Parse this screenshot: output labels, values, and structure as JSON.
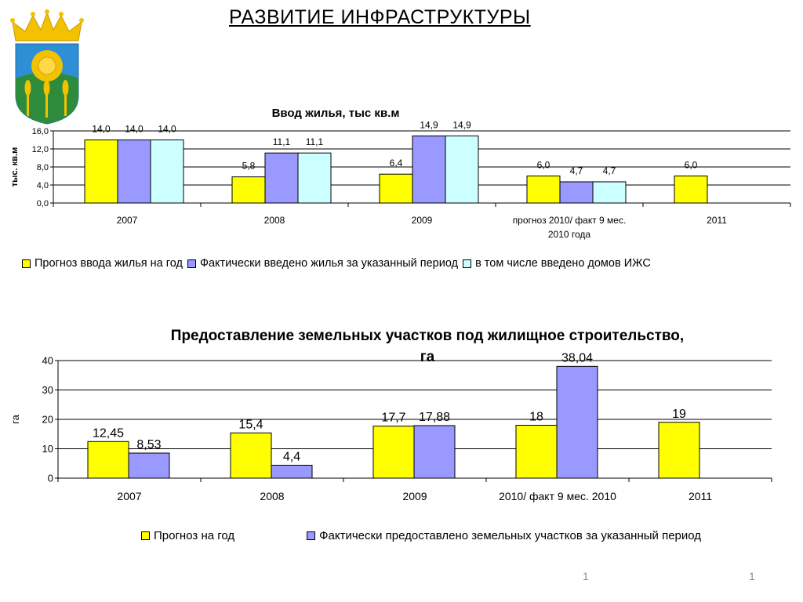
{
  "page": {
    "title": "РАЗВИТИЕ ИНФРАСТРУКТУРЫ",
    "page_numbers": [
      "1",
      "1"
    ]
  },
  "colors": {
    "yellow": "#ffff00",
    "lavender": "#9999ff",
    "cyan": "#ccffff",
    "crest_blue": "#2f8fd6",
    "crest_green": "#2e8b3c",
    "crest_gold": "#f2c200"
  },
  "chart_data": [
    {
      "type": "bar",
      "title": "Ввод жилья, тыс кв.м",
      "ylabel": "тыс. кв.м",
      "xlabel": "",
      "ylim": [
        0,
        16
      ],
      "yticks": [
        "0,0",
        "4,0",
        "8,0",
        "12,0",
        "16,0"
      ],
      "grid": true,
      "legend_position": "bottom",
      "categories": [
        "2007",
        "2008",
        "2009",
        "прогноз 2010/ факт 9 мес. 2010 года",
        "2011"
      ],
      "series": [
        {
          "name": "Прогноз ввода жилья на год",
          "color": "#ffff00",
          "values": [
            14.0,
            5.8,
            6.4,
            6.0,
            6.0
          ],
          "labels": [
            "14,0",
            "5,8",
            "6,4",
            "6,0",
            "6,0"
          ]
        },
        {
          "name": "Фактически введено жилья за указанный период",
          "color": "#9999ff",
          "values": [
            14.0,
            11.1,
            14.9,
            4.7,
            null
          ],
          "labels": [
            "14,0",
            "11,1",
            "14,9",
            "4,7",
            null
          ]
        },
        {
          "name": "в том числе введено домов ИЖС",
          "color": "#ccffff",
          "values": [
            14.0,
            11.1,
            14.9,
            4.7,
            null
          ],
          "labels": [
            "14,0",
            "11,1",
            "14,9",
            "4,7",
            null
          ]
        }
      ]
    },
    {
      "type": "bar",
      "title": "Предоставление земельных участков под жилищное строительство, га",
      "ylabel": "га",
      "xlabel": "",
      "ylim": [
        0,
        40
      ],
      "yticks": [
        "0",
        "10",
        "20",
        "30",
        "40"
      ],
      "grid": true,
      "legend_position": "bottom",
      "categories": [
        "2007",
        "2008",
        "2009",
        "2010/ факт 9 мес. 2010",
        "2011"
      ],
      "series": [
        {
          "name": "Прогноз на год",
          "color": "#ffff00",
          "values": [
            12.45,
            15.4,
            17.7,
            18,
            19
          ],
          "labels": [
            "12,45",
            "15,4",
            "17,7",
            "18",
            "19"
          ]
        },
        {
          "name": "Фактически предоставлено земельных участков за указанный период",
          "color": "#9999ff",
          "values": [
            8.53,
            4.4,
            17.88,
            38.04,
            null
          ],
          "labels": [
            "8,53",
            "4,4",
            "17,88",
            "38,04",
            null
          ]
        }
      ]
    }
  ]
}
